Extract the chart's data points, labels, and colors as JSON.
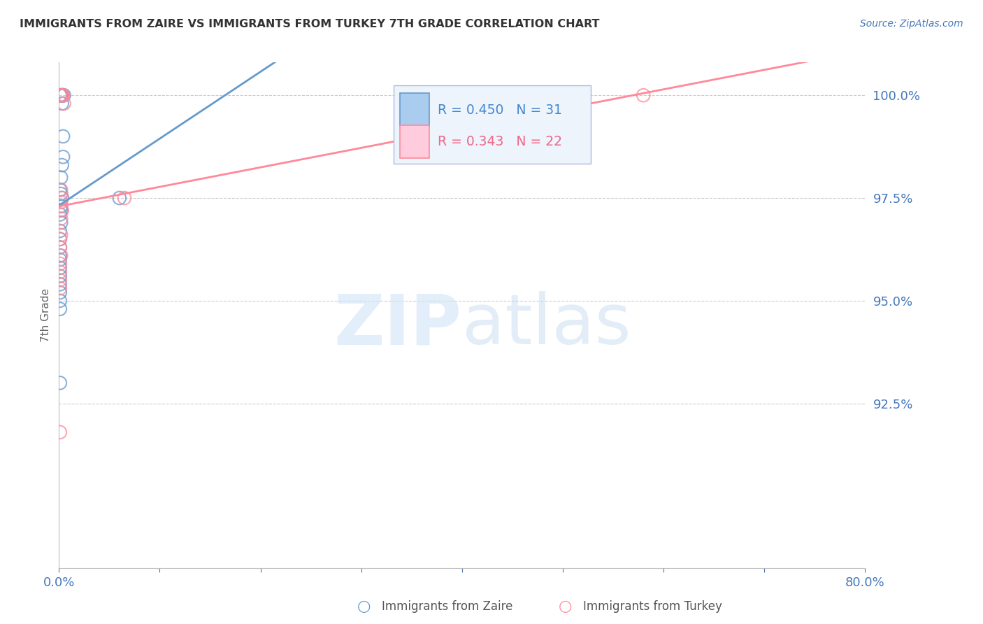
{
  "title": "IMMIGRANTS FROM ZAIRE VS IMMIGRANTS FROM TURKEY 7TH GRADE CORRELATION CHART",
  "source": "Source: ZipAtlas.com",
  "ylabel": "7th Grade",
  "xmin": 0.0,
  "xmax": 0.8,
  "ymin": 0.885,
  "ymax": 1.008,
  "yticks": [
    0.925,
    0.95,
    0.975,
    1.0
  ],
  "ytick_labels": [
    "92.5%",
    "95.0%",
    "97.5%",
    "100.0%"
  ],
  "xticks": [
    0.0,
    0.1,
    0.2,
    0.3,
    0.4,
    0.5,
    0.6,
    0.7,
    0.8
  ],
  "xtick_labels": [
    "0.0%",
    "",
    "",
    "",
    "",
    "",
    "",
    "",
    "80.0%"
  ],
  "zaire_color": "#6699CC",
  "turkey_color": "#FF8899",
  "zaire_R": 0.45,
  "zaire_N": 31,
  "turkey_R": 0.343,
  "turkey_N": 22,
  "zaire_points_x": [
    0.001,
    0.002,
    0.003,
    0.003,
    0.004,
    0.005,
    0.003,
    0.004,
    0.004,
    0.003,
    0.002,
    0.001,
    0.002,
    0.003,
    0.002,
    0.002,
    0.001,
    0.002,
    0.001,
    0.001,
    0.001,
    0.001,
    0.001,
    0.001,
    0.001,
    0.001,
    0.001,
    0.001,
    0.001,
    0.06,
    0.001
  ],
  "zaire_points_y": [
    1.0,
    1.0,
    1.0,
    1.0,
    1.0,
    1.0,
    0.998,
    0.99,
    0.985,
    0.983,
    0.98,
    0.977,
    0.976,
    0.975,
    0.973,
    0.972,
    0.971,
    0.969,
    0.967,
    0.965,
    0.963,
    0.961,
    0.96,
    0.958,
    0.956,
    0.954,
    0.952,
    0.95,
    0.948,
    0.975,
    0.93
  ],
  "turkey_points_x": [
    0.001,
    0.003,
    0.003,
    0.004,
    0.004,
    0.005,
    0.002,
    0.003,
    0.002,
    0.003,
    0.002,
    0.002,
    0.001,
    0.001,
    0.002,
    0.001,
    0.001,
    0.001,
    0.001,
    0.065,
    0.001,
    0.58
  ],
  "turkey_points_y": [
    1.0,
    1.0,
    1.0,
    1.0,
    1.0,
    0.998,
    0.977,
    0.975,
    0.974,
    0.972,
    0.97,
    0.966,
    0.965,
    0.963,
    0.961,
    0.959,
    0.957,
    0.955,
    0.953,
    0.975,
    0.918,
    1.0
  ],
  "watermark_zip": "ZIP",
  "watermark_atlas": "atlas",
  "background_color": "#FFFFFF",
  "grid_color": "#CCCCCC",
  "title_color": "#333333",
  "axis_label_color": "#666666",
  "tick_color": "#4477BB",
  "legend_label_color_zaire": "#4488CC",
  "legend_label_color_turkey": "#EE6688"
}
